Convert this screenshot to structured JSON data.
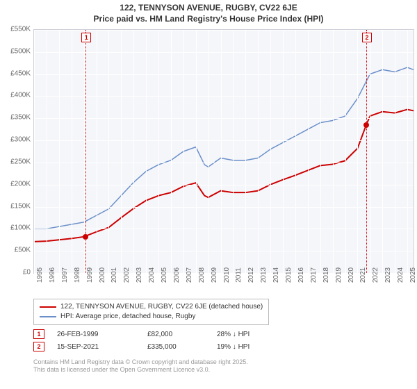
{
  "title": {
    "line1": "122, TENNYSON AVENUE, RUGBY, CV22 6JE",
    "line2": "Price paid vs. HM Land Registry's House Price Index (HPI)",
    "fontsize": 12,
    "color": "#333333"
  },
  "chart": {
    "type": "line",
    "background_color": "#f5f6fa",
    "grid_color": "#ffffff",
    "axis_color": "#cfcfd8",
    "label_fontsize": 10,
    "label_color": "#666666",
    "xlim": [
      1995,
      2025.5
    ],
    "ylim": [
      0,
      550000
    ],
    "ytick_step": 50000,
    "yticks": [
      "£0",
      "£50K",
      "£100K",
      "£150K",
      "£200K",
      "£250K",
      "£300K",
      "£350K",
      "£400K",
      "£450K",
      "£500K",
      "£550K"
    ],
    "xticks": [
      1995,
      1996,
      1997,
      1998,
      1999,
      2000,
      2001,
      2002,
      2003,
      2004,
      2005,
      2006,
      2007,
      2008,
      2009,
      2010,
      2011,
      2012,
      2013,
      2014,
      2015,
      2016,
      2017,
      2018,
      2019,
      2020,
      2021,
      2022,
      2023,
      2024,
      2025
    ],
    "series": [
      {
        "name": "hpi",
        "label": "HPI: Average price, detached house, Rugby",
        "color": "#6b8fc9",
        "line_width": 1.5,
        "x": [
          1995,
          1996,
          1997,
          1998,
          1999,
          2000,
          2001,
          2002,
          2003,
          2004,
          2005,
          2006,
          2007,
          2008,
          2008.7,
          2009,
          2010,
          2011,
          2012,
          2013,
          2014,
          2015,
          2016,
          2017,
          2018,
          2019,
          2020,
          2021,
          2022,
          2023,
          2024,
          2025,
          2025.5
        ],
        "y": [
          100000,
          100000,
          105000,
          110000,
          115000,
          130000,
          145000,
          175000,
          205000,
          230000,
          245000,
          255000,
          275000,
          285000,
          245000,
          240000,
          260000,
          255000,
          255000,
          260000,
          280000,
          295000,
          310000,
          325000,
          340000,
          345000,
          355000,
          395000,
          450000,
          460000,
          455000,
          465000,
          460000
        ]
      },
      {
        "name": "price_paid",
        "label": "122, TENNYSON AVENUE, RUGBY, CV22 6JE (detached house)",
        "color": "#cc0000",
        "line_width": 2,
        "x": [
          1995,
          1996,
          1997,
          1998,
          1999,
          2000,
          2001,
          2002,
          2003,
          2004,
          2005,
          2006,
          2007,
          2008,
          2008.7,
          2009,
          2010,
          2011,
          2012,
          2013,
          2014,
          2015,
          2016,
          2017,
          2018,
          2019,
          2020,
          2021,
          2021.7,
          2022,
          2023,
          2024,
          2025,
          2025.5
        ],
        "y": [
          71000,
          72000,
          75000,
          78000,
          82000,
          93000,
          103000,
          125000,
          146000,
          164000,
          175000,
          182000,
          196000,
          204000,
          175000,
          171000,
          186000,
          182000,
          182000,
          186000,
          200000,
          211000,
          221000,
          232000,
          243000,
          246000,
          254000,
          282000,
          335000,
          355000,
          365000,
          362000,
          370000,
          367000
        ]
      }
    ],
    "markers": [
      {
        "n": "1",
        "x": 1999.15,
        "y": 82000
      },
      {
        "n": "2",
        "x": 2021.7,
        "y": 335000
      }
    ]
  },
  "legend": {
    "border_color": "#bbbbbb",
    "fontsize": 10,
    "items": [
      {
        "color": "#cc0000",
        "label": "122, TENNYSON AVENUE, RUGBY, CV22 6JE (detached house)"
      },
      {
        "color": "#6b8fc9",
        "label": "HPI: Average price, detached house, Rugby"
      }
    ]
  },
  "sale_markers": {
    "fontsize": 10,
    "rows": [
      {
        "n": "1",
        "date": "26-FEB-1999",
        "price": "£82,000",
        "pct": "28% ↓ HPI"
      },
      {
        "n": "2",
        "date": "15-SEP-2021",
        "price": "£335,000",
        "pct": "19% ↓ HPI"
      }
    ]
  },
  "footer": {
    "line1": "Contains HM Land Registry data © Crown copyright and database right 2025.",
    "line2": "This data is licensed under the Open Government Licence v3.0.",
    "color": "#999999",
    "fontsize": 9
  }
}
